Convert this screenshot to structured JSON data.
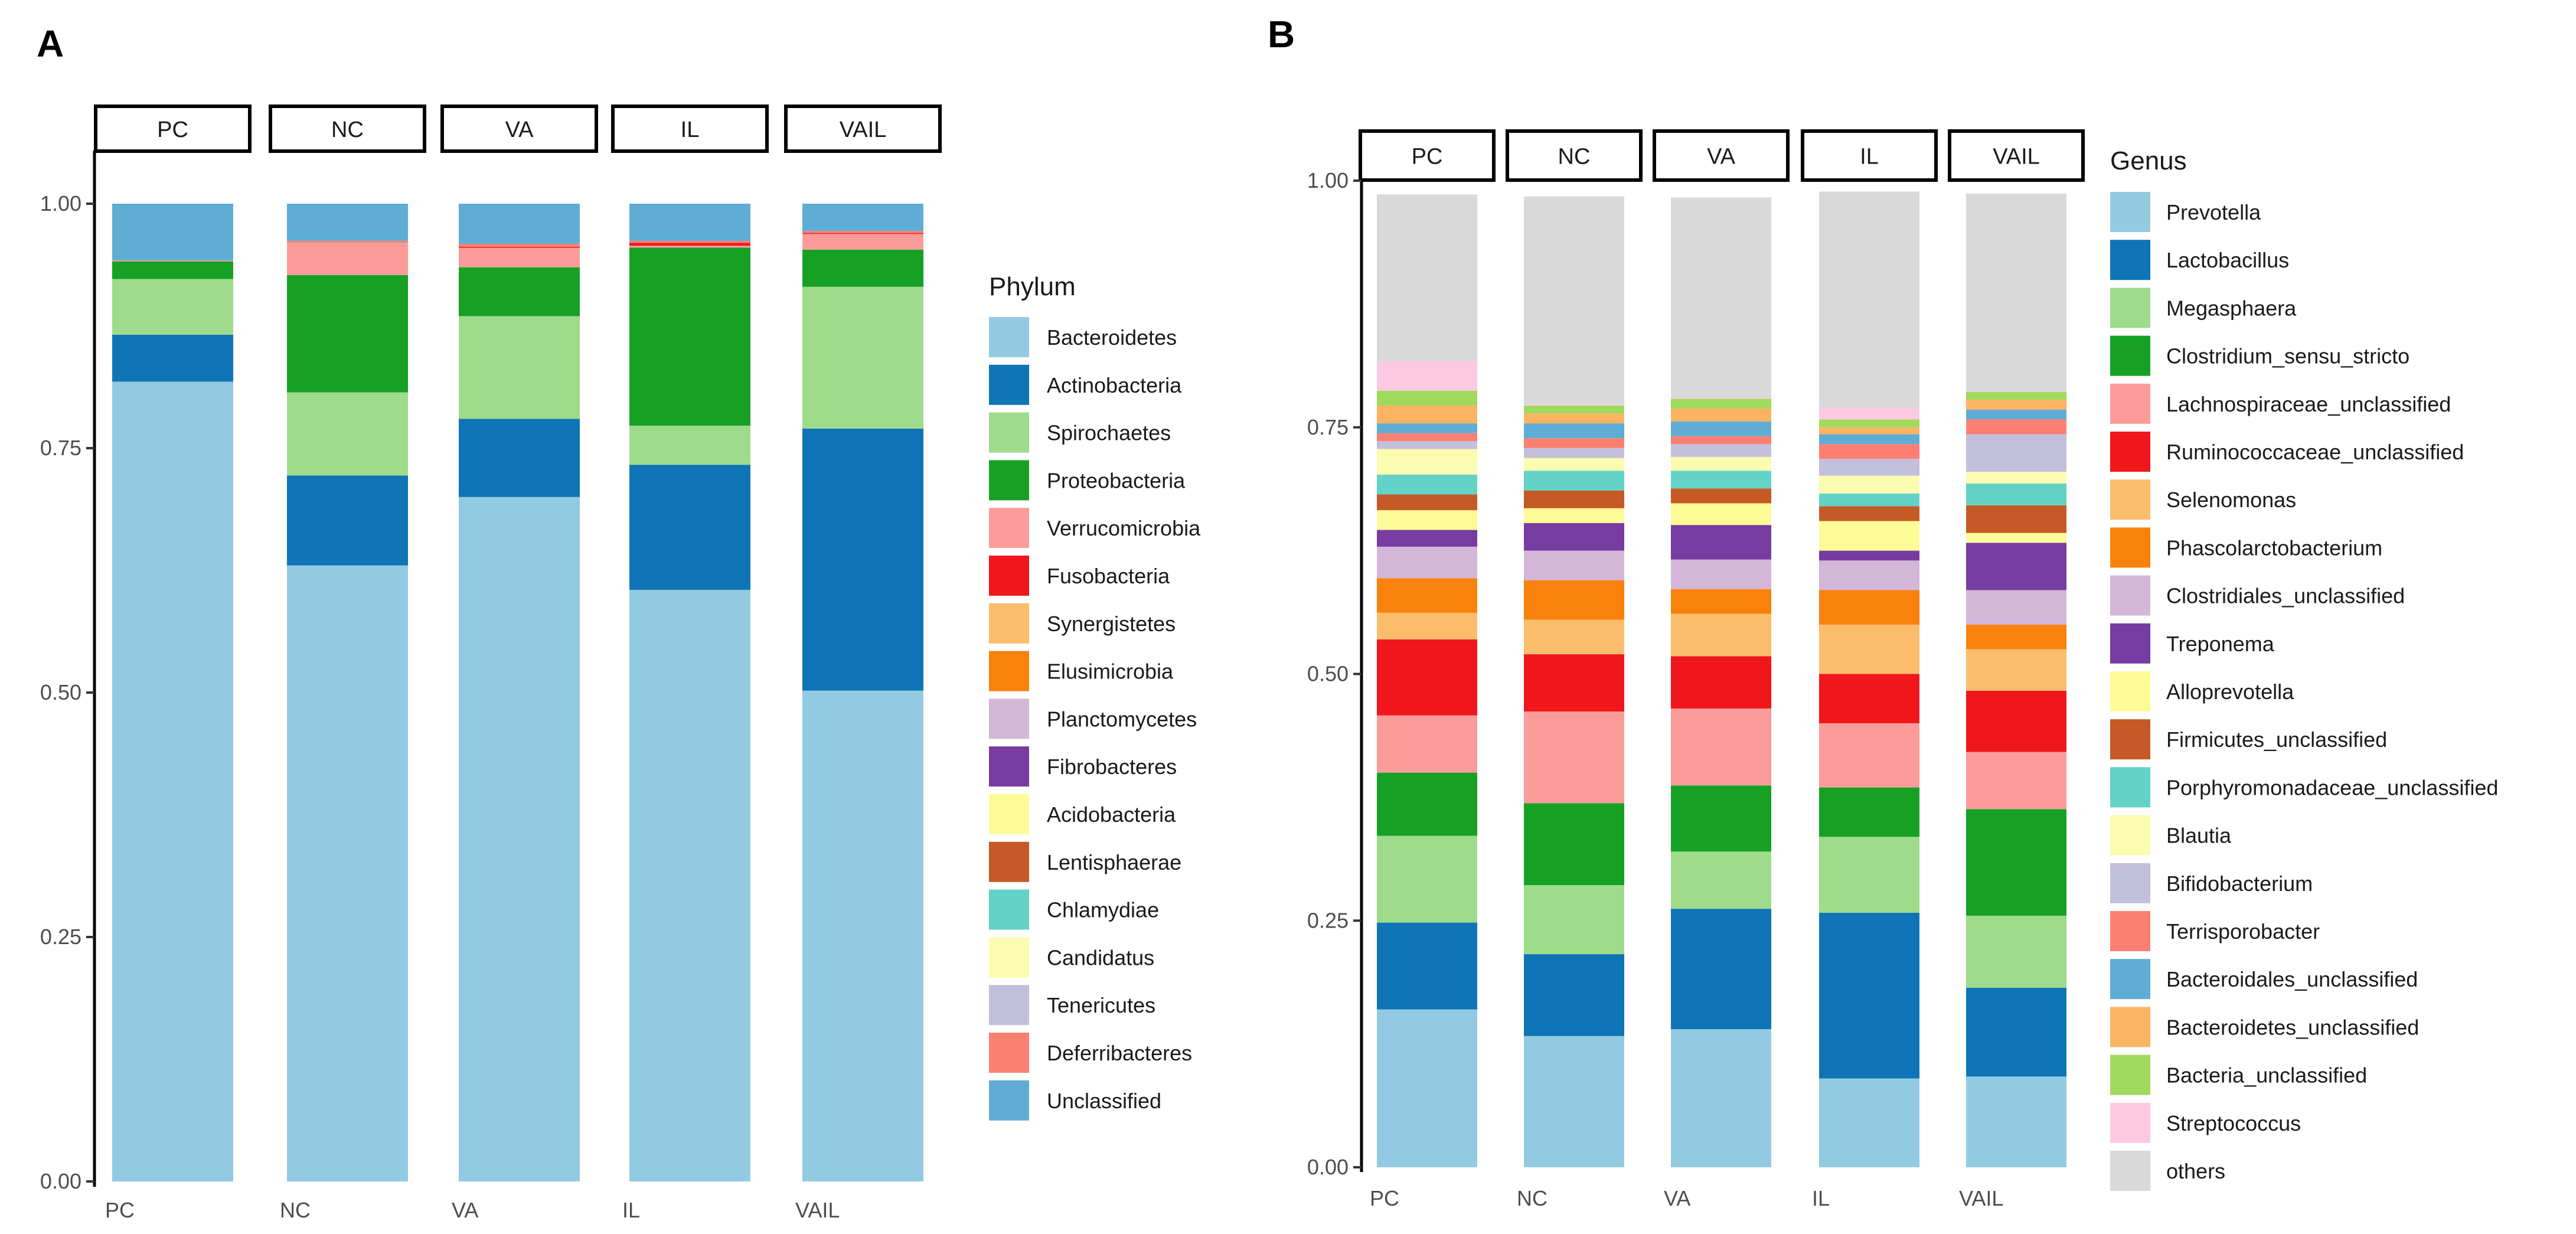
{
  "panel_labels": {
    "a": "A",
    "b": "B"
  },
  "colors": {
    "bacteroidetes": "#92cbe1",
    "actinobacteria": "#0f74b6",
    "spirochaetes": "#9edb8a",
    "proteobacteria": "#16a124",
    "verrucomicrobia": "#fb9c9b",
    "fusobacteria": "#f0171c",
    "synergistetes": "#fbbd6b",
    "elusimicrobia": "#f9820c",
    "planctomycetes": "#d3b6d8",
    "fibrobacteres": "#773ca1",
    "acidobacteria": "#fdfb97",
    "lentisphaerae": "#c55a26",
    "chlamydiae": "#62d3c6",
    "candidatus": "#fcfcb0",
    "tenericutes": "#c2bfdc",
    "deferribacteres": "#fc8072",
    "unclassified": "#5fadd5",
    "bacteria_unclassified": "#a0da5c",
    "streptococcus": "#fcc9e1",
    "others": "#d9d9d9"
  },
  "chart_data": [
    {
      "type": "bar",
      "stacked": true,
      "title": "",
      "xlabel": "",
      "ylabel": "",
      "ylim": [
        0,
        1
      ],
      "yticks": [
        "0.00",
        "0.25",
        "0.50",
        "0.75",
        "1.00"
      ],
      "categories": [
        "PC",
        "NC",
        "VA",
        "IL",
        "VAIL"
      ],
      "facet_labels": [
        "PC",
        "NC",
        "VA",
        "IL",
        "VAIL"
      ],
      "legend_title": "Phylum",
      "legend_position": "right",
      "series": [
        {
          "name": "Bacteroidetes",
          "color": "#92cbe1",
          "values": [
            0.818,
            0.63,
            0.7,
            0.605,
            0.502
          ]
        },
        {
          "name": "Actinobacteria",
          "color": "#0f74b6",
          "values": [
            0.048,
            0.092,
            0.08,
            0.128,
            0.268
          ]
        },
        {
          "name": "Spirochaetes",
          "color": "#9edb8a",
          "values": [
            0.057,
            0.085,
            0.105,
            0.04,
            0.145
          ]
        },
        {
          "name": "Proteobacteria",
          "color": "#16a124",
          "values": [
            0.018,
            0.12,
            0.05,
            0.182,
            0.038
          ]
        },
        {
          "name": "Verrucomicrobia",
          "color": "#fb9c9b",
          "values": [
            0.001,
            0.033,
            0.02,
            0.002,
            0.016
          ]
        },
        {
          "name": "Fusobacteria",
          "color": "#f0171c",
          "values": [
            0,
            0,
            0.001,
            0.003,
            0.001
          ]
        },
        {
          "name": "Synergistetes",
          "color": "#fbbd6b",
          "values": [
            0,
            0,
            0,
            0,
            0
          ]
        },
        {
          "name": "Elusimicrobia",
          "color": "#f9820c",
          "values": [
            0,
            0,
            0,
            0,
            0
          ]
        },
        {
          "name": "Planctomycetes",
          "color": "#d3b6d8",
          "values": [
            0,
            0,
            0,
            0,
            0
          ]
        },
        {
          "name": "Fibrobacteres",
          "color": "#773ca1",
          "values": [
            0,
            0,
            0,
            0,
            0
          ]
        },
        {
          "name": "Acidobacteria",
          "color": "#fdfb97",
          "values": [
            0,
            0,
            0,
            0,
            0
          ]
        },
        {
          "name": "Lentisphaerae",
          "color": "#c55a26",
          "values": [
            0,
            0,
            0,
            0,
            0
          ]
        },
        {
          "name": "Chlamydiae",
          "color": "#62d3c6",
          "values": [
            0,
            0,
            0,
            0,
            0
          ]
        },
        {
          "name": "Candidatus",
          "color": "#fcfcb0",
          "values": [
            0,
            0,
            0,
            0,
            0
          ]
        },
        {
          "name": "Tenericutes",
          "color": "#c2bfdc",
          "values": [
            0,
            0,
            0,
            0,
            0
          ]
        },
        {
          "name": "Deferribacteres",
          "color": "#fc8072",
          "values": [
            0,
            0.002,
            0.003,
            0.002,
            0.002
          ]
        },
        {
          "name": "Unclassified",
          "color": "#5fadd5",
          "values": [
            0.058,
            0.038,
            0.041,
            0.038,
            0.028
          ]
        }
      ]
    },
    {
      "type": "bar",
      "stacked": true,
      "title": "",
      "xlabel": "",
      "ylabel": "",
      "ylim": [
        0,
        1
      ],
      "yticks": [
        "0.00",
        "0.25",
        "0.50",
        "0.75",
        "1.00"
      ],
      "categories": [
        "PC",
        "NC",
        "VA",
        "IL",
        "VAIL"
      ],
      "facet_labels": [
        "PC",
        "NC",
        "VA",
        "IL",
        "VAIL"
      ],
      "legend_title": "Genus",
      "legend_position": "right",
      "series": [
        {
          "name": "Prevotella",
          "color": "#92cbe1",
          "values": [
            0.16,
            0.133,
            0.14,
            0.09,
            0.092
          ]
        },
        {
          "name": "Lactobacillus",
          "color": "#0f74b6",
          "values": [
            0.088,
            0.083,
            0.122,
            0.168,
            0.09
          ]
        },
        {
          "name": "Megasphaera",
          "color": "#9edb8a",
          "values": [
            0.088,
            0.07,
            0.058,
            0.077,
            0.073
          ]
        },
        {
          "name": "Clostridium_sensu_stricto",
          "color": "#16a124",
          "values": [
            0.064,
            0.083,
            0.067,
            0.05,
            0.108
          ]
        },
        {
          "name": "Lachnospiraceae_unclassified",
          "color": "#fb9c9b",
          "values": [
            0.058,
            0.093,
            0.078,
            0.065,
            0.058
          ]
        },
        {
          "name": "Ruminococcaceae_unclassified",
          "color": "#f0171c",
          "values": [
            0.077,
            0.058,
            0.053,
            0.05,
            0.062
          ]
        },
        {
          "name": "Selenomonas",
          "color": "#fbbd6b",
          "values": [
            0.027,
            0.035,
            0.043,
            0.05,
            0.042
          ]
        },
        {
          "name": "Phascolarctobacterium",
          "color": "#f9820c",
          "values": [
            0.035,
            0.04,
            0.025,
            0.035,
            0.025
          ]
        },
        {
          "name": "Clostridiales_unclassified",
          "color": "#d3b6d8",
          "values": [
            0.032,
            0.03,
            0.03,
            0.03,
            0.035
          ]
        },
        {
          "name": "Treponema",
          "color": "#773ca1",
          "values": [
            0.017,
            0.028,
            0.035,
            0.01,
            0.048
          ]
        },
        {
          "name": "Alloprevotella",
          "color": "#fdfb97",
          "values": [
            0.02,
            0.015,
            0.022,
            0.03,
            0.01
          ]
        },
        {
          "name": "Firmicutes_unclassified",
          "color": "#c55a26",
          "values": [
            0.016,
            0.018,
            0.015,
            0.015,
            0.028
          ]
        },
        {
          "name": "Porphyromonadaceae_unclassified",
          "color": "#62d3c6",
          "values": [
            0.02,
            0.02,
            0.018,
            0.013,
            0.022
          ]
        },
        {
          "name": "Blautia",
          "color": "#fcfcb0",
          "values": [
            0.026,
            0.013,
            0.014,
            0.018,
            0.012
          ]
        },
        {
          "name": "Bifidobacterium",
          "color": "#c2bfdc",
          "values": [
            0.008,
            0.01,
            0.013,
            0.017,
            0.038
          ]
        },
        {
          "name": "Terrisporobacter",
          "color": "#fc8072",
          "values": [
            0.008,
            0.01,
            0.008,
            0.015,
            0.015
          ]
        },
        {
          "name": "Bacteroidales_unclassified",
          "color": "#5fadd5",
          "values": [
            0.01,
            0.015,
            0.015,
            0.01,
            0.01
          ]
        },
        {
          "name": "Bacteroidetes_unclassified",
          "color": "#fdb462",
          "values": [
            0.018,
            0.01,
            0.013,
            0.007,
            0.01
          ]
        },
        {
          "name": "Bacteria_unclassified",
          "color": "#a0da5c",
          "values": [
            0.015,
            0.008,
            0.01,
            0.008,
            0.008
          ]
        },
        {
          "name": "Streptococcus",
          "color": "#fcc9e1",
          "values": [
            0.03,
            0.001,
            0.001,
            0.012,
            0.001
          ]
        },
        {
          "name": "others",
          "color": "#d9d9d9",
          "values": [
            0.169,
            0.211,
            0.203,
            0.219,
            0.2
          ]
        }
      ]
    }
  ]
}
